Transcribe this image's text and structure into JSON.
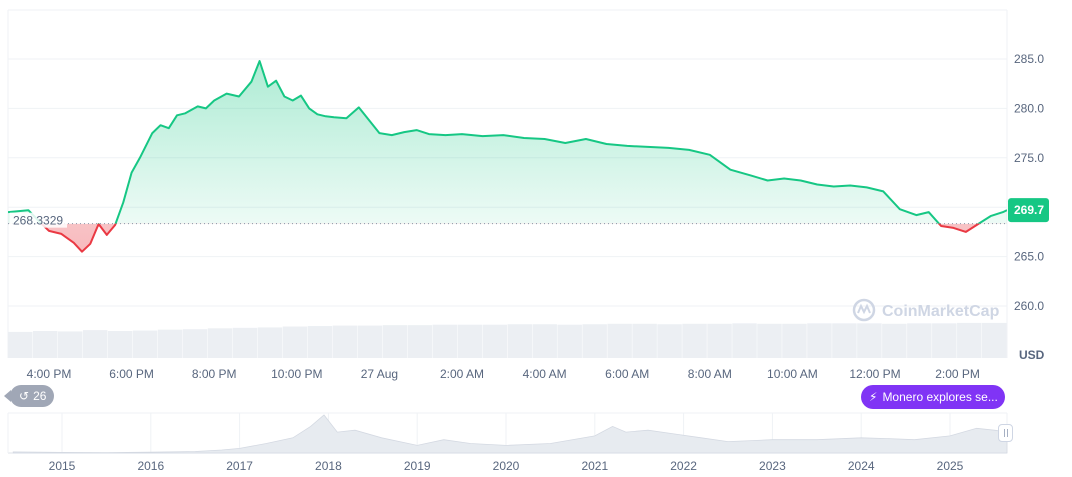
{
  "chart_data": {
    "type": "area",
    "currency": "USD",
    "reference_value": 268.3329,
    "reference_label": "268.3329",
    "last_price_label": "269.7",
    "last_price": 269.7,
    "ylim": [
      256.0,
      290.0
    ],
    "y_ticks": [
      260.0,
      265.0,
      270.0,
      275.0,
      280.0,
      285.0
    ],
    "y_tick_labels": [
      "260.0",
      "265.0",
      "",
      "275.0",
      "280.0",
      "285.0"
    ],
    "x_tick_labels": [
      "4:00 PM",
      "6:00 PM",
      "8:00 PM",
      "10:00 PM",
      "27 Aug",
      "2:00 AM",
      "4:00 AM",
      "6:00 AM",
      "8:00 AM",
      "10:00 AM",
      "12:00 PM",
      "2:00 PM"
    ],
    "x_tick_hours": [
      0,
      2,
      4,
      6,
      8,
      10,
      12,
      14,
      16,
      18,
      20,
      22
    ],
    "x_range_hours": [
      -1,
      23.4
    ],
    "price_series": {
      "x_hours": [
        -1.0,
        -0.5,
        -0.2,
        0.0,
        0.3,
        0.6,
        0.8,
        1.0,
        1.2,
        1.4,
        1.6,
        1.8,
        2.0,
        2.2,
        2.5,
        2.7,
        2.9,
        3.1,
        3.3,
        3.6,
        3.8,
        4.0,
        4.3,
        4.6,
        4.9,
        5.1,
        5.3,
        5.5,
        5.7,
        5.9,
        6.1,
        6.3,
        6.5,
        6.7,
        6.9,
        7.2,
        7.5,
        8.0,
        8.3,
        8.6,
        8.9,
        9.2,
        9.6,
        10.0,
        10.5,
        11.0,
        11.5,
        12.0,
        12.5,
        13.0,
        13.5,
        14.0,
        14.5,
        15.0,
        15.5,
        16.0,
        16.5,
        17.0,
        17.4,
        17.8,
        18.2,
        18.6,
        19.0,
        19.4,
        19.8,
        20.2,
        20.6,
        21.0,
        21.3,
        21.6,
        21.9,
        22.2,
        22.5,
        22.8,
        23.1,
        23.4
      ],
      "values": [
        269.5,
        269.7,
        268.4,
        267.6,
        267.3,
        266.4,
        265.5,
        266.3,
        268.3,
        267.2,
        268.2,
        270.5,
        273.5,
        275.0,
        277.5,
        278.3,
        278.0,
        279.3,
        279.5,
        280.2,
        280.0,
        280.8,
        281.5,
        281.2,
        282.7,
        284.8,
        282.2,
        282.8,
        281.2,
        280.8,
        281.3,
        280.0,
        279.4,
        279.2,
        279.1,
        279.0,
        280.1,
        277.5,
        277.3,
        277.6,
        277.8,
        277.4,
        277.3,
        277.4,
        277.2,
        277.3,
        277.0,
        276.9,
        276.5,
        276.9,
        276.4,
        276.2,
        276.1,
        276.0,
        275.8,
        275.3,
        273.8,
        273.2,
        272.7,
        272.9,
        272.7,
        272.3,
        272.1,
        272.2,
        272.0,
        271.6,
        269.8,
        269.2,
        269.5,
        268.1,
        267.9,
        267.5,
        268.3,
        269.1,
        269.5,
        269.7
      ]
    },
    "volume_series": {
      "values": [
        0.58,
        0.6,
        0.59,
        0.62,
        0.6,
        0.61,
        0.63,
        0.64,
        0.66,
        0.67,
        0.68,
        0.7,
        0.71,
        0.72,
        0.72,
        0.73,
        0.73,
        0.74,
        0.74,
        0.74,
        0.75,
        0.75,
        0.74,
        0.75,
        0.76,
        0.76,
        0.75,
        0.76,
        0.76,
        0.77,
        0.76,
        0.76,
        0.77,
        0.77,
        0.77,
        0.76,
        0.77,
        0.77,
        0.78,
        0.78
      ]
    },
    "overview": {
      "x_tick_labels": [
        "2015",
        "2016",
        "2017",
        "2018",
        "2019",
        "2020",
        "2021",
        "2022",
        "2023",
        "2024",
        "2025"
      ],
      "x_tick_years": [
        2015,
        2016,
        2017,
        2018,
        2019,
        2020,
        2021,
        2022,
        2023,
        2024,
        2025
      ],
      "x_range_years": [
        2014.45,
        2025.7
      ],
      "x_years": [
        2014.45,
        2015.0,
        2015.5,
        2016.0,
        2016.5,
        2016.8,
        2017.0,
        2017.3,
        2017.6,
        2017.8,
        2017.95,
        2018.1,
        2018.3,
        2018.6,
        2019.0,
        2019.3,
        2019.6,
        2020.0,
        2020.5,
        2021.0,
        2021.2,
        2021.35,
        2021.6,
        2021.9,
        2022.2,
        2022.5,
        2023.0,
        2023.5,
        2024.0,
        2024.3,
        2024.6,
        2025.0,
        2025.3,
        2025.5,
        2025.7
      ],
      "values": [
        3,
        1.5,
        1,
        2,
        4,
        8,
        12,
        25,
        40,
        70,
        100,
        55,
        60,
        40,
        20,
        35,
        25,
        20,
        25,
        45,
        70,
        55,
        60,
        50,
        40,
        30,
        35,
        35,
        40,
        38,
        35,
        45,
        65,
        60,
        55
      ]
    }
  },
  "watermark": {
    "text": "CoinMarketCap",
    "icon": "coinmarketcap-logo"
  },
  "news_pill": {
    "label": "Monero explores se...",
    "icon": "lightning-icon",
    "color": "#8034f5"
  },
  "event_count": {
    "label": "26",
    "icon": "history-icon",
    "color": "#a0a7b6"
  },
  "colors": {
    "up": "#16c784",
    "down": "#ea3943",
    "axis_text": "#58667e",
    "grid": "#eff2f5"
  }
}
